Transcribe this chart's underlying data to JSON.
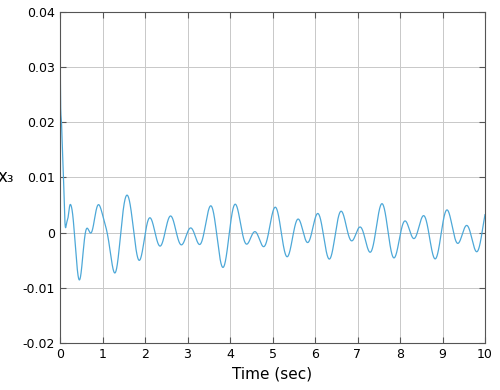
{
  "title": "",
  "xlabel": "Time (sec)",
  "ylabel": "x₃",
  "xlim": [
    0,
    10
  ],
  "ylim": [
    -0.02,
    0.04
  ],
  "yticks": [
    -0.02,
    -0.01,
    0,
    0.01,
    0.02,
    0.03,
    0.04
  ],
  "xticks": [
    0,
    1,
    2,
    3,
    4,
    5,
    6,
    7,
    8,
    9,
    10
  ],
  "ytick_labels": [
    "-0.02",
    "-0.01",
    "0",
    "0.01",
    "0.02",
    "0.03",
    "0.04"
  ],
  "xtick_labels": [
    "0",
    "1",
    "2",
    "3",
    "4",
    "5",
    "6",
    "7",
    "8",
    "9",
    "10"
  ],
  "line_color": "#4DA8D8",
  "bg_color": "#ffffff",
  "grid_color": "#c8c8c8",
  "figsize": [
    5.0,
    3.9
  ],
  "dpi": 100
}
